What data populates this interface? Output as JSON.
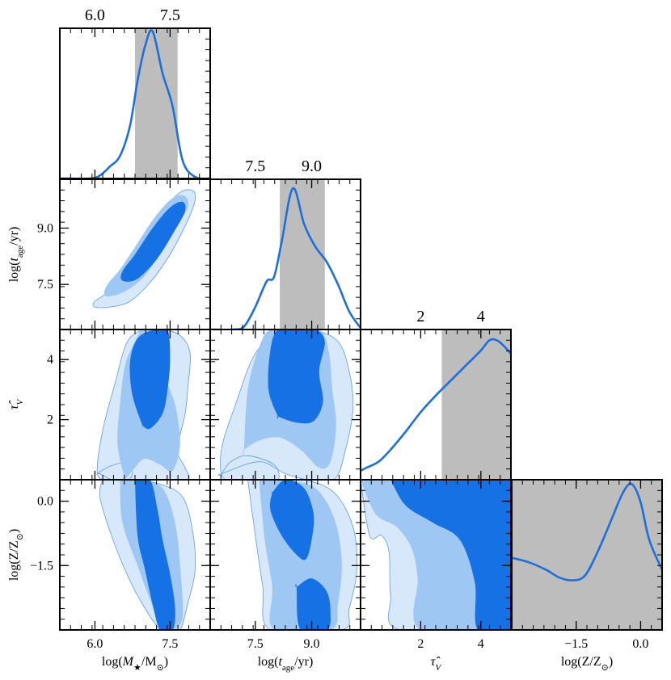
{
  "chart_data": {
    "type": "corner",
    "params": [
      {
        "label": "log(M★/M⊙)",
        "range": [
          5.3,
          8.3
        ],
        "ticks": [
          6.0,
          7.5
        ],
        "tick_labels": [
          "6.0",
          "7.5"
        ],
        "interval": [
          6.8,
          7.65
        ]
      },
      {
        "label": "log(tage/yr)",
        "range": [
          6.3,
          10.3
        ],
        "ticks": [
          7.5,
          9.0
        ],
        "tick_labels": [
          "7.5",
          "9.0"
        ],
        "interval": [
          8.15,
          9.35
        ]
      },
      {
        "label": "τ̂V",
        "range": [
          0.0,
          5.0
        ],
        "ticks": [
          2,
          4
        ],
        "tick_labels": [
          "2",
          "4"
        ],
        "interval": [
          2.7,
          5.0
        ]
      },
      {
        "label": "log(Z/Z⊙)",
        "range": [
          -3.0,
          0.5
        ],
        "ticks": [
          -1.5,
          0.0
        ],
        "tick_labels": [
          "−1.5",
          "0.0"
        ],
        "interval": [
          -3.0,
          0.5
        ]
      }
    ],
    "marginals": [
      {
        "param": 0,
        "x": [
          5.3,
          5.9,
          6.1,
          6.3,
          6.5,
          6.7,
          6.85,
          7.0,
          7.15,
          7.35,
          7.55,
          7.75,
          8.0,
          8.3
        ],
        "y": [
          0.0,
          0.0,
          0.02,
          0.08,
          0.15,
          0.35,
          0.65,
          0.88,
          0.98,
          0.7,
          0.48,
          0.12,
          0.01,
          0.0
        ]
      },
      {
        "param": 1,
        "x": [
          6.3,
          6.9,
          7.2,
          7.5,
          7.8,
          8.0,
          8.2,
          8.5,
          8.8,
          9.1,
          9.4,
          9.7,
          10.0,
          10.3
        ],
        "y": [
          0.0,
          0.0,
          0.02,
          0.15,
          0.32,
          0.35,
          0.58,
          0.94,
          0.7,
          0.55,
          0.45,
          0.3,
          0.12,
          0.01
        ]
      },
      {
        "param": 2,
        "x": [
          0.0,
          0.2,
          0.6,
          1.0,
          1.5,
          2.0,
          2.5,
          3.0,
          3.5,
          4.0,
          4.3,
          4.6,
          5.0
        ],
        "y": [
          0.06,
          0.08,
          0.12,
          0.2,
          0.32,
          0.45,
          0.56,
          0.66,
          0.76,
          0.86,
          0.93,
          0.92,
          0.84
        ]
      },
      {
        "param": 3,
        "x": [
          -3.0,
          -2.6,
          -2.2,
          -1.9,
          -1.6,
          -1.3,
          -1.0,
          -0.7,
          -0.4,
          -0.2,
          0.0,
          0.2,
          0.5
        ],
        "y": [
          0.48,
          0.45,
          0.4,
          0.35,
          0.33,
          0.36,
          0.52,
          0.72,
          0.92,
          0.97,
          0.85,
          0.6,
          0.4
        ]
      }
    ],
    "joint": [
      {
        "x_param": 0,
        "y_param": 1,
        "levels": [
          {
            "x": [
              6.0,
              6.3,
              6.7,
              7.1,
              7.5,
              7.85,
              8.0,
              7.95,
              7.7,
              7.35,
              7.0,
              6.6,
              6.3,
              6.0
            ],
            "y": [
              6.9,
              6.9,
              7.05,
              7.55,
              8.3,
              9.2,
              9.75,
              10.0,
              9.95,
              9.45,
              8.7,
              7.95,
              7.35,
              7.05
            ]
          },
          {
            "x": [
              6.2,
              6.5,
              6.9,
              7.25,
              7.6,
              7.85,
              7.8,
              7.55,
              7.2,
              6.85,
              6.5,
              6.25
            ],
            "y": [
              7.2,
              7.25,
              7.6,
              8.2,
              9.0,
              9.55,
              9.85,
              9.8,
              9.3,
              8.6,
              7.9,
              7.5
            ]
          },
          {
            "x": [
              6.55,
              6.85,
              7.25,
              7.6,
              7.8,
              7.75,
              7.5,
              7.15,
              6.8,
              6.55
            ],
            "y": [
              7.6,
              7.65,
              8.2,
              8.95,
              9.45,
              9.7,
              9.55,
              9.0,
              8.3,
              7.85
            ]
          }
        ]
      },
      {
        "x_param": 0,
        "y_param": 2,
        "levels": [
          {
            "x": [
              6.05,
              6.3,
              6.6,
              6.75,
              6.65,
              6.3,
              6.05,
              6.15,
              6.4,
              6.65,
              7.0,
              7.35,
              7.7,
              7.9,
              7.85,
              7.8,
              7.65,
              7.8,
              7.85,
              7.3,
              6.7,
              6.35,
              6.1
            ],
            "y": [
              0.2,
              0.45,
              0.55,
              0.25,
              0.0,
              0.0,
              0.2,
              1.6,
              3.2,
              4.6,
              5.0,
              5.0,
              4.8,
              4.2,
              3.0,
              2.2,
              1.0,
              0.4,
              0.0,
              0.0,
              0.0,
              0.0,
              0.2
            ]
          },
          {
            "x": [
              6.6,
              6.8,
              7.0,
              7.3,
              7.55,
              7.7,
              7.6,
              7.4,
              7.45,
              7.2,
              6.95,
              6.8,
              6.6,
              6.5,
              6.45,
              6.6
            ],
            "y": [
              0.0,
              0.4,
              0.7,
              0.5,
              0.3,
              1.2,
              2.5,
              3.5,
              4.6,
              5.0,
              5.0,
              4.6,
              3.8,
              2.5,
              1.2,
              0.0
            ]
          },
          {
            "x": [
              6.95,
              7.1,
              7.35,
              7.45,
              7.5,
              7.45,
              7.2,
              6.85,
              6.7,
              6.75,
              6.95
            ],
            "y": [
              1.8,
              1.7,
              2.2,
              3.0,
              4.0,
              5.0,
              5.0,
              4.7,
              3.9,
              2.8,
              1.8
            ]
          }
        ]
      },
      {
        "x_param": 0,
        "y_param": 3,
        "levels": [
          {
            "x": [
              6.15,
              6.4,
              6.8,
              7.3,
              7.75,
              7.95,
              8.0,
              7.85,
              7.7,
              7.5,
              7.3,
              6.9,
              6.6,
              6.3,
              6.1,
              6.15
            ],
            "y": [
              0.5,
              0.5,
              0.5,
              0.4,
              0.1,
              -0.7,
              -1.6,
              -2.4,
              -3.0,
              -3.0,
              -3.0,
              -2.3,
              -1.6,
              -0.7,
              0.1,
              0.5
            ]
          },
          {
            "x": [
              6.5,
              6.9,
              7.35,
              7.6,
              7.7,
              7.75,
              7.55,
              7.35,
              7.1,
              6.85,
              6.55,
              6.5
            ],
            "y": [
              0.5,
              0.5,
              0.3,
              -0.5,
              -1.5,
              -2.7,
              -3.0,
              -3.0,
              -2.3,
              -1.5,
              -0.5,
              0.5
            ]
          },
          {
            "x": [
              6.8,
              7.1,
              7.25,
              7.35,
              7.5,
              7.6,
              7.55,
              7.3,
              7.15,
              7.0,
              6.85,
              6.8
            ],
            "y": [
              0.5,
              0.5,
              -0.2,
              -0.9,
              -1.7,
              -2.5,
              -3.0,
              -3.0,
              -2.4,
              -1.6,
              -0.8,
              0.5
            ]
          }
        ]
      },
      {
        "x_param": 1,
        "y_param": 2,
        "levels": [
          {
            "x": [
              6.6,
              6.85,
              7.3,
              8.0,
              8.1,
              7.6,
              6.7,
              6.6,
              7.0,
              7.5,
              8.2,
              9.0,
              9.7,
              10.0,
              10.1,
              9.9,
              9.6,
              8.9,
              8.3,
              7.6,
              6.6
            ],
            "y": [
              0.2,
              0.6,
              0.8,
              0.5,
              0.0,
              0.0,
              0.0,
              1.0,
              2.6,
              4.2,
              5.0,
              5.0,
              4.6,
              3.6,
              2.4,
              1.0,
              0.0,
              0.0,
              0.2,
              0.6,
              0.2
            ]
          },
          {
            "x": [
              7.2,
              7.6,
              8.15,
              8.7,
              9.2,
              9.5,
              9.65,
              9.55,
              9.45,
              9.2,
              8.5,
              7.9,
              7.6,
              7.3,
              7.2
            ],
            "y": [
              1.0,
              1.3,
              1.4,
              1.0,
              0.4,
              0.6,
              1.8,
              3.0,
              4.3,
              5.0,
              5.0,
              5.0,
              4.4,
              3.0,
              1.0
            ]
          },
          {
            "x": [
              8.1,
              8.6,
              9.05,
              9.3,
              9.2,
              9.35,
              9.1,
              8.6,
              8.1,
              7.9,
              7.85,
              8.1
            ],
            "y": [
              2.1,
              1.9,
              1.95,
              2.6,
              3.6,
              4.6,
              5.0,
              5.0,
              5.0,
              4.3,
              3.0,
              2.1
            ]
          }
        ]
      },
      {
        "x_param": 1,
        "y_param": 3,
        "levels": [
          {
            "x": [
              7.3,
              8.0,
              8.8,
              9.6,
              10.1,
              10.2,
              10.0,
              9.8,
              7.9,
              7.7,
              7.5,
              7.3
            ],
            "y": [
              0.5,
              0.5,
              0.5,
              0.2,
              -0.6,
              -1.6,
              -2.5,
              -3.0,
              -3.0,
              -2.0,
              -0.8,
              0.5
            ]
          },
          {
            "x": [
              7.6,
              8.3,
              9.1,
              9.6,
              9.8,
              9.7,
              9.5,
              8.0,
              7.95,
              7.75,
              7.6
            ],
            "y": [
              0.5,
              0.5,
              0.3,
              -0.4,
              -1.4,
              -2.4,
              -3.0,
              -3.0,
              -2.0,
              -0.9,
              0.5
            ]
          },
          {
            "x": [
              7.95,
              8.3,
              8.8,
              9.05,
              9.0,
              8.85,
              8.6,
              8.2,
              7.9,
              7.95
            ],
            "y": [
              0.2,
              0.5,
              0.3,
              -0.3,
              -0.9,
              -1.35,
              -1.25,
              -0.8,
              -0.2,
              0.2
            ]
          },
          {
            "x": [
              8.6,
              9.0,
              9.4,
              9.5,
              9.4,
              8.7,
              8.6
            ],
            "y": [
              -2.0,
              -1.8,
              -2.1,
              -2.6,
              -3.0,
              -3.0,
              -2.0
            ]
          }
        ]
      },
      {
        "x_param": 2,
        "y_param": 3,
        "levels": [
          {
            "x": [
              0.0,
              1.0,
              2.5,
              4.0,
              5.0,
              5.0,
              1.3,
              1.0,
              0.95,
              0.7,
              0.3,
              0.0
            ],
            "y": [
              0.5,
              0.5,
              0.5,
              0.5,
              0.5,
              -3.0,
              -3.0,
              -2.2,
              -1.2,
              -0.8,
              -0.8,
              0.5
            ]
          },
          {
            "x": [
              0.0,
              1.3,
              2.5,
              3.7,
              5.0,
              5.0,
              2.0,
              1.9,
              1.7,
              1.2,
              0.5,
              0.0
            ],
            "y": [
              0.5,
              0.5,
              0.5,
              0.5,
              0.5,
              -3.0,
              -3.0,
              -1.8,
              -1.1,
              -0.6,
              -0.3,
              0.5
            ]
          },
          {
            "x": [
              1.0,
              2.2,
              3.3,
              4.3,
              5.0,
              5.0,
              3.9,
              3.8,
              3.3,
              2.4,
              1.5,
              1.0
            ],
            "y": [
              0.5,
              0.5,
              0.5,
              0.5,
              0.5,
              -3.0,
              -3.0,
              -1.9,
              -0.9,
              -0.5,
              -0.1,
              0.5
            ]
          }
        ]
      }
    ],
    "colors": {
      "marginal_line": "#1f6fd8",
      "interval_fill": "#bdbdbd",
      "levels": [
        "#d8e8fb",
        "#9fc7f4",
        "#1671e5"
      ],
      "contour_edge": "#5c9ae8"
    }
  }
}
